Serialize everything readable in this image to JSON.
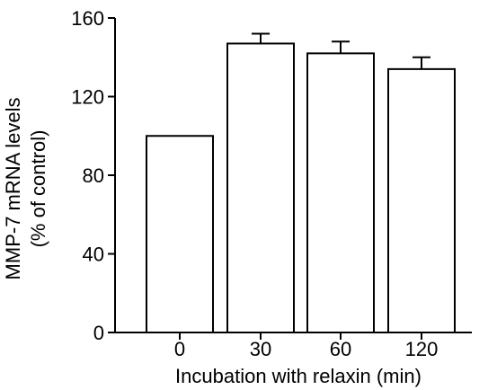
{
  "chart_data": {
    "type": "bar",
    "categories": [
      "0",
      "30",
      "60",
      "120"
    ],
    "values": [
      100,
      147,
      142,
      134
    ],
    "errors": [
      0,
      5,
      6,
      6
    ],
    "xlabel": "Incubation with relaxin (min)",
    "ylabel_line1": "MMP-7 mRNA levels",
    "ylabel_line2": "(% of control)",
    "ylim": [
      0,
      160
    ],
    "yticks": [
      0,
      40,
      80,
      120,
      160
    ],
    "grid": false,
    "bar_fill": "#ffffff",
    "bar_stroke": "#000000"
  }
}
